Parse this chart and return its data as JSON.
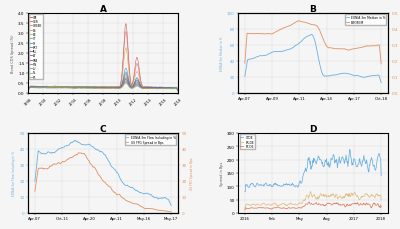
{
  "panel_labels": [
    "A",
    "B",
    "C",
    "D"
  ],
  "background": "#f5f5f5",
  "grid_color": "#cccccc",
  "panel_A": {
    "x_start": 1998,
    "x_end": 2018,
    "ylabel": "Bond CDS Spread (%)",
    "colors": [
      "#c44040",
      "#e06060",
      "#e08050",
      "#d4a040",
      "#a0c040",
      "#60b060",
      "#40a090",
      "#4080c0",
      "#6060c0",
      "#9050b0",
      "#b04080",
      "#808080",
      "#50a0b0",
      "#70c080",
      "#c0a060"
    ],
    "legend_labels": [
      "ITA",
      "GER",
      "GREEK",
      "ES",
      "BE",
      "IT",
      "SI",
      "PRT",
      "IRL",
      "AT",
      "SPA",
      "FIN",
      "LU",
      "NL",
      "FR"
    ],
    "ylim": [
      0,
      4
    ],
    "xticks": [
      1998,
      2000,
      2002,
      2004,
      2006,
      2008,
      2010,
      2012,
      2014,
      2016,
      2018
    ]
  },
  "panel_B": {
    "ylabel_left": "EONIA 3m Median in %",
    "ylabel_right": "LIBOR3M",
    "legend": [
      "EONIA 3m Median in %",
      "LIBOR3M"
    ],
    "color_left": "#6ab0e0",
    "color_right": "#e09060",
    "ylim_left": [
      0,
      100
    ],
    "ylim_right": [
      0.0,
      0.5
    ],
    "xtick_labels": [
      "Apr-07",
      "Apr-09",
      "Apr-11",
      "Apr-14",
      "Apr-17",
      "Oct-18"
    ]
  },
  "panel_C": {
    "ylabel_left": "EONIA 3m Flow Including in %",
    "ylabel_right": "US FFG Spread in Bps",
    "legend": [
      "EONIA 3m Flow Including in %",
      "US FFG Spread in Bps"
    ],
    "color_left": "#6ab0e0",
    "color_right": "#e09060",
    "ylim_left": [
      0,
      50
    ],
    "ylim_right": [
      0,
      50
    ],
    "xtick_labels": [
      "Apr-07",
      "Oct-11",
      "Apr-20",
      "Apr-11",
      "May-16",
      "May-17"
    ]
  },
  "panel_D": {
    "ylabel": "Spread in Bps",
    "legend": [
      "IT-DE",
      "FR-DE",
      "PT-DE"
    ],
    "colors": [
      "#6ab0e0",
      "#e0c080",
      "#e08060"
    ],
    "ylim": [
      0,
      300
    ],
    "xtick_labels": [
      "2016",
      "Feb",
      "May",
      "Aug",
      "2017",
      "2018"
    ]
  }
}
